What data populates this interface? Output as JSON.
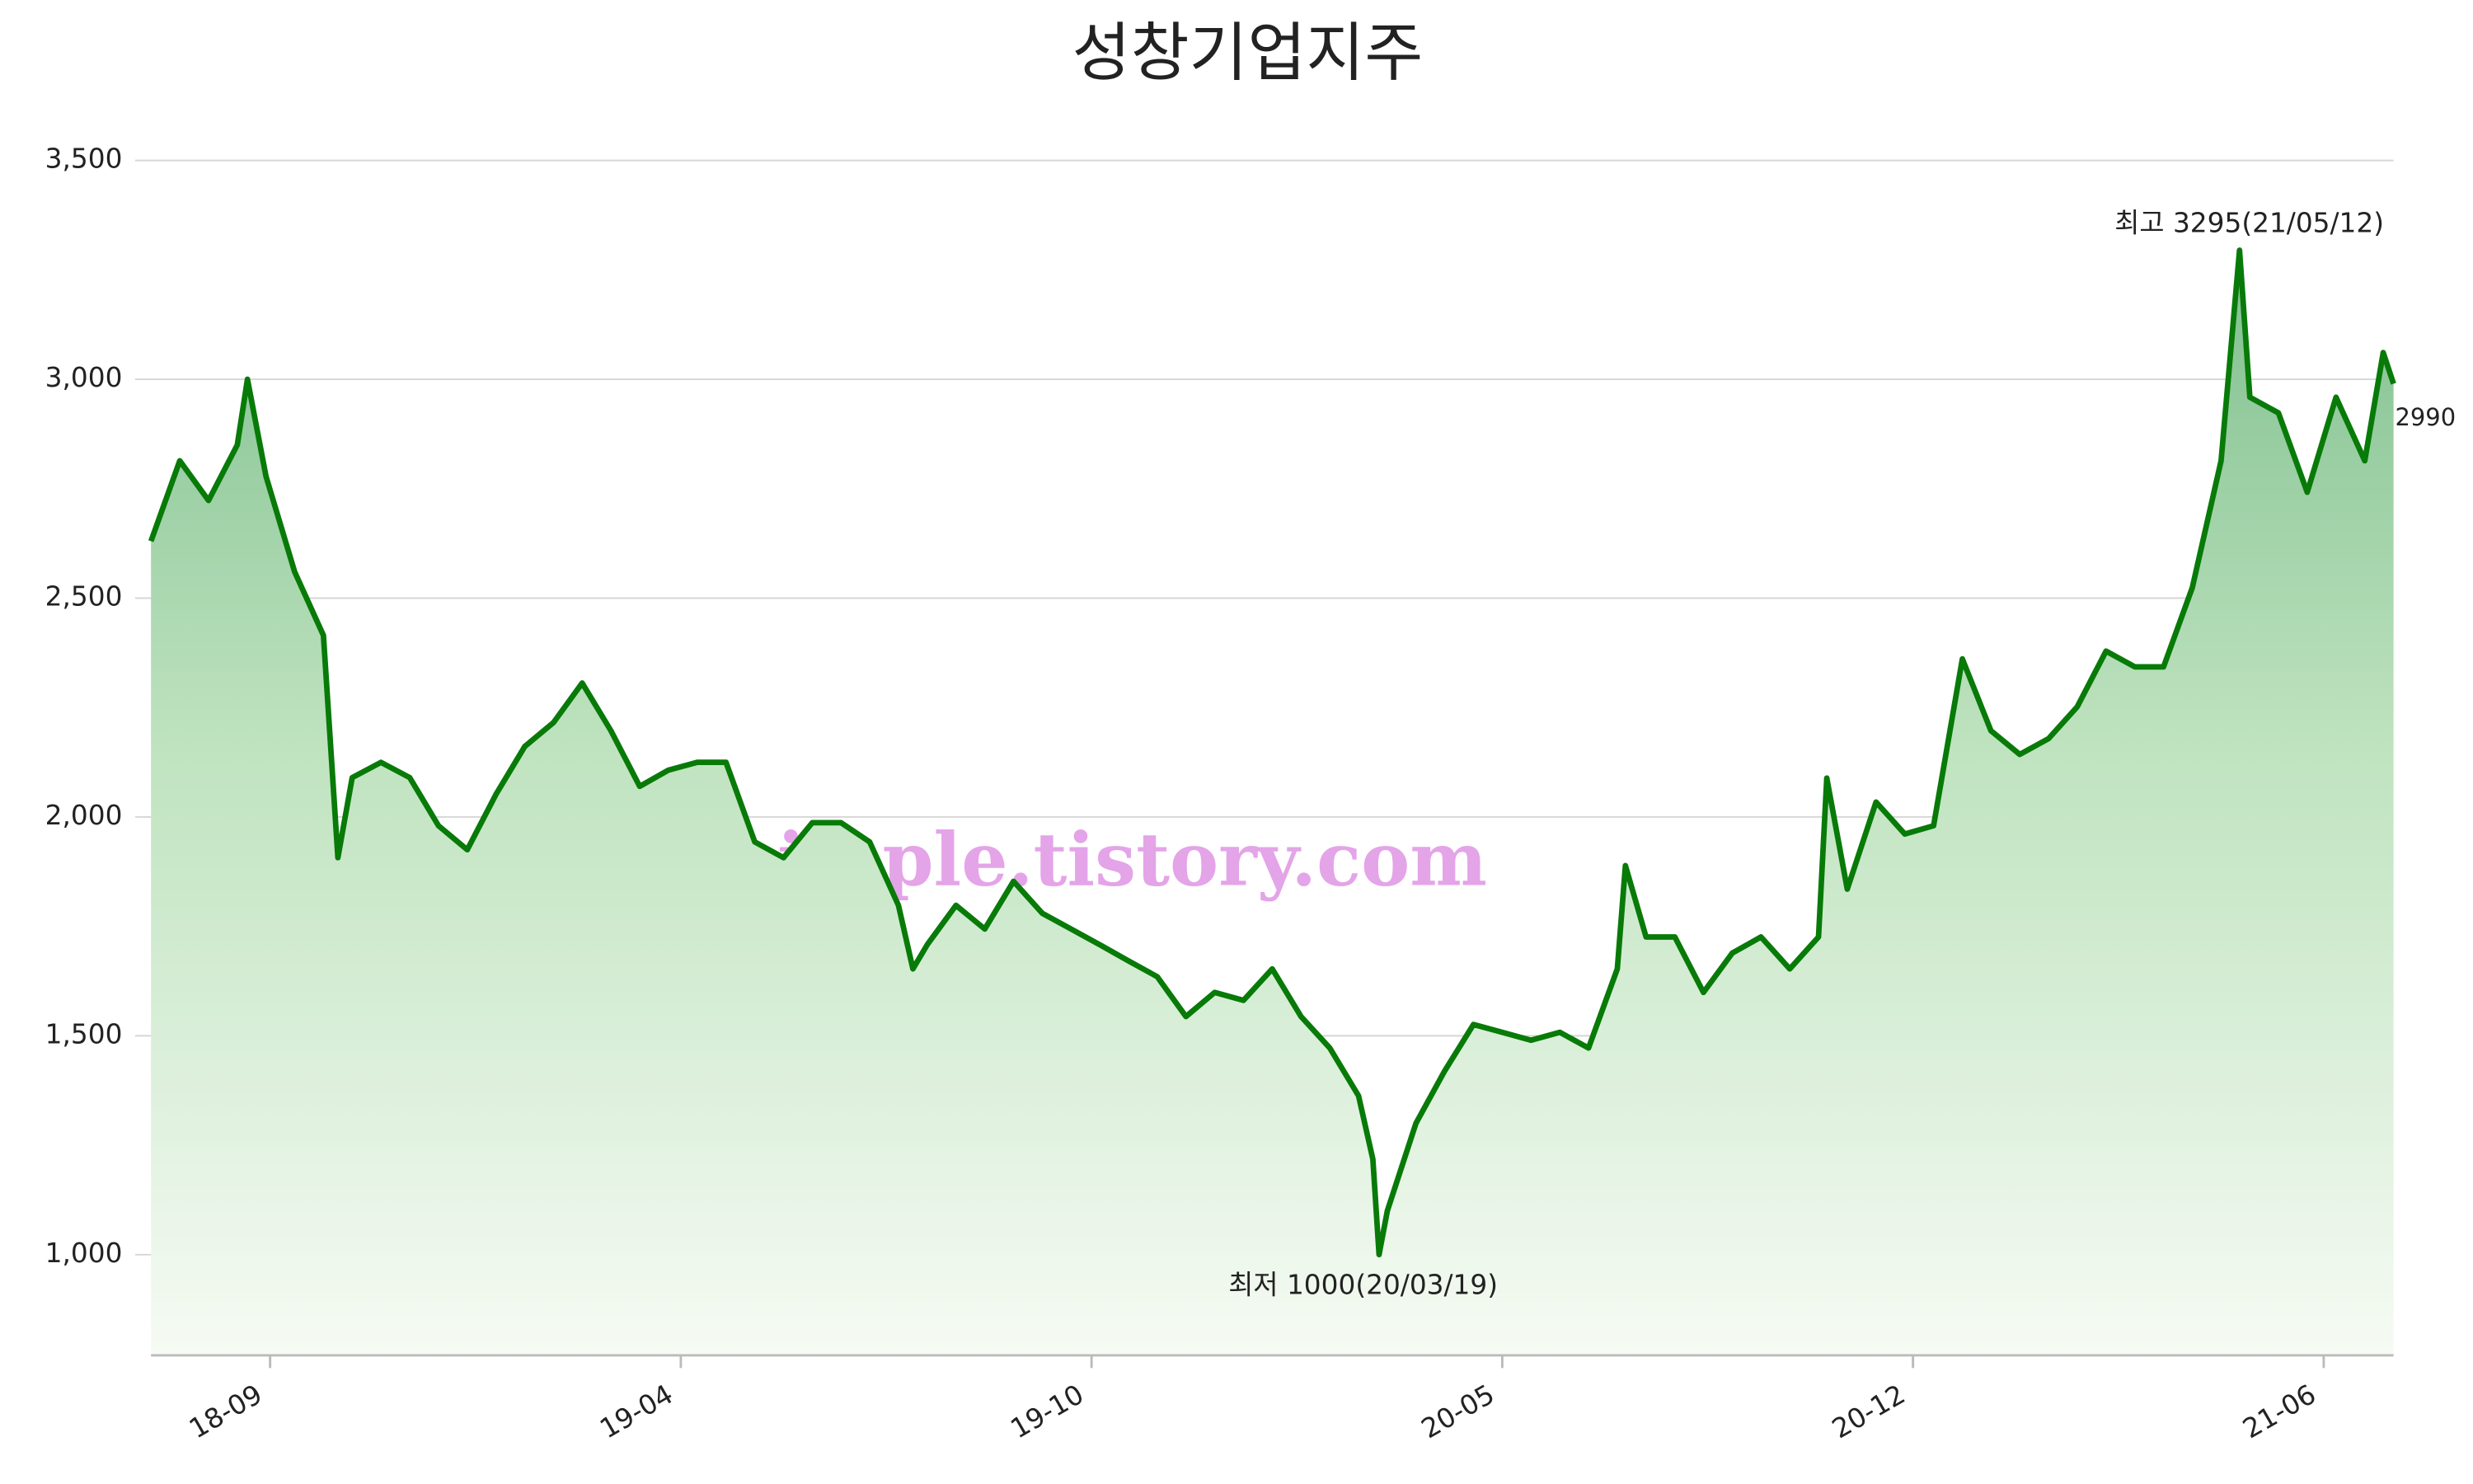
{
  "chart_data": {
    "type": "line",
    "title": "성창기업지주",
    "watermark": "kindsimple.tistory.com",
    "color": "#087a08",
    "grid": true,
    "x": [
      "2018-07-30",
      "2018-08-13",
      "2018-08-27",
      "2018-09-10",
      "2018-09-15",
      "2018-09-24",
      "2018-10-08",
      "2018-10-22",
      "2018-10-29",
      "2018-11-05",
      "2018-11-19",
      "2018-12-03",
      "2018-12-17",
      "2018-12-31",
      "2019-01-14",
      "2019-01-28",
      "2019-02-11",
      "2019-02-25",
      "2019-03-11",
      "2019-03-25",
      "2019-04-08",
      "2019-04-22",
      "2019-05-06",
      "2019-05-20",
      "2019-06-03",
      "2019-06-17",
      "2019-07-01",
      "2019-07-15",
      "2019-07-29",
      "2019-08-05",
      "2019-08-12",
      "2019-08-26",
      "2019-09-09",
      "2019-09-23",
      "2019-10-07",
      "2019-10-21",
      "2019-11-04",
      "2019-11-18",
      "2019-12-02",
      "2019-12-16",
      "2019-12-30",
      "2020-01-13",
      "2020-01-27",
      "2020-02-10",
      "2020-02-24",
      "2020-03-09",
      "2020-03-16",
      "2020-03-19",
      "2020-03-23",
      "2020-04-06",
      "2020-04-20",
      "2020-05-04",
      "2020-05-18",
      "2020-06-01",
      "2020-06-15",
      "2020-06-29",
      "2020-07-13",
      "2020-07-17",
      "2020-07-27",
      "2020-08-10",
      "2020-08-24",
      "2020-09-07",
      "2020-09-21",
      "2020-10-05",
      "2020-10-19",
      "2020-10-23",
      "2020-11-02",
      "2020-11-16",
      "2020-11-30",
      "2020-12-14",
      "2020-12-28",
      "2021-01-11",
      "2021-01-25",
      "2021-02-08",
      "2021-02-22",
      "2021-03-08",
      "2021-03-22",
      "2021-04-05",
      "2021-04-19",
      "2021-05-03",
      "2021-05-12",
      "2021-05-17",
      "2021-05-31",
      "2021-06-14",
      "2021-06-28",
      "2021-07-12",
      "2021-07-21",
      "2021-07-26"
    ],
    "values": [
      2630,
      2814,
      2723,
      2850,
      3000,
      2778,
      2560,
      2415,
      1907,
      2090,
      2125,
      2090,
      1980,
      1925,
      2052,
      2161,
      2216,
      2306,
      2197,
      2070,
      2107,
      2125,
      2125,
      1943,
      1907,
      1987,
      1987,
      1943,
      1798,
      1653,
      1708,
      1798,
      1744,
      1853,
      1780,
      1744,
      1708,
      1671,
      1635,
      1544,
      1599,
      1581,
      1653,
      1544,
      1472,
      1363,
      1218,
      1000,
      1100,
      1300,
      1420,
      1526,
      1508,
      1490,
      1508,
      1472,
      1653,
      1889,
      1726,
      1726,
      1599,
      1689,
      1726,
      1653,
      1726,
      2089,
      1835,
      2034,
      1961,
      1980,
      2361,
      2197,
      2143,
      2179,
      2252,
      2379,
      2343,
      2343,
      2524,
      2814,
      3295,
      2959,
      2923,
      2742,
      2959,
      2814,
      3061,
      2990
    ],
    "xlim": [
      "2018-07-30",
      "2021-07-26"
    ],
    "xticks": [
      {
        "value": "2018-09-26",
        "label": "18-09"
      },
      {
        "value": "2019-04-14",
        "label": "19-04"
      },
      {
        "value": "2019-10-31",
        "label": "19-10"
      },
      {
        "value": "2020-05-18",
        "label": "20-05"
      },
      {
        "value": "2020-12-04",
        "label": "20-12"
      },
      {
        "value": "2021-06-22",
        "label": "21-06"
      }
    ],
    "ylim": [
      770,
      3500
    ],
    "yticks": [
      {
        "value": 1000,
        "label": "1,000"
      },
      {
        "value": 1500,
        "label": "1,500"
      },
      {
        "value": 2000,
        "label": "2,000"
      },
      {
        "value": 2500,
        "label": "2,500"
      },
      {
        "value": 3000,
        "label": "3,000"
      },
      {
        "value": 3500,
        "label": "3,500"
      }
    ],
    "annotations": [
      {
        "text": "최고 3295(21/05/12)",
        "x": "2021-05-12",
        "y": 3295,
        "color": "#e00000"
      },
      {
        "text": "최저 1000(20/03/19)",
        "x": "2020-03-19",
        "y": 1000,
        "color": "#0000d0"
      },
      {
        "text": "2990",
        "x": "2021-07-26",
        "y": 2990,
        "color": "#111111"
      }
    ]
  }
}
